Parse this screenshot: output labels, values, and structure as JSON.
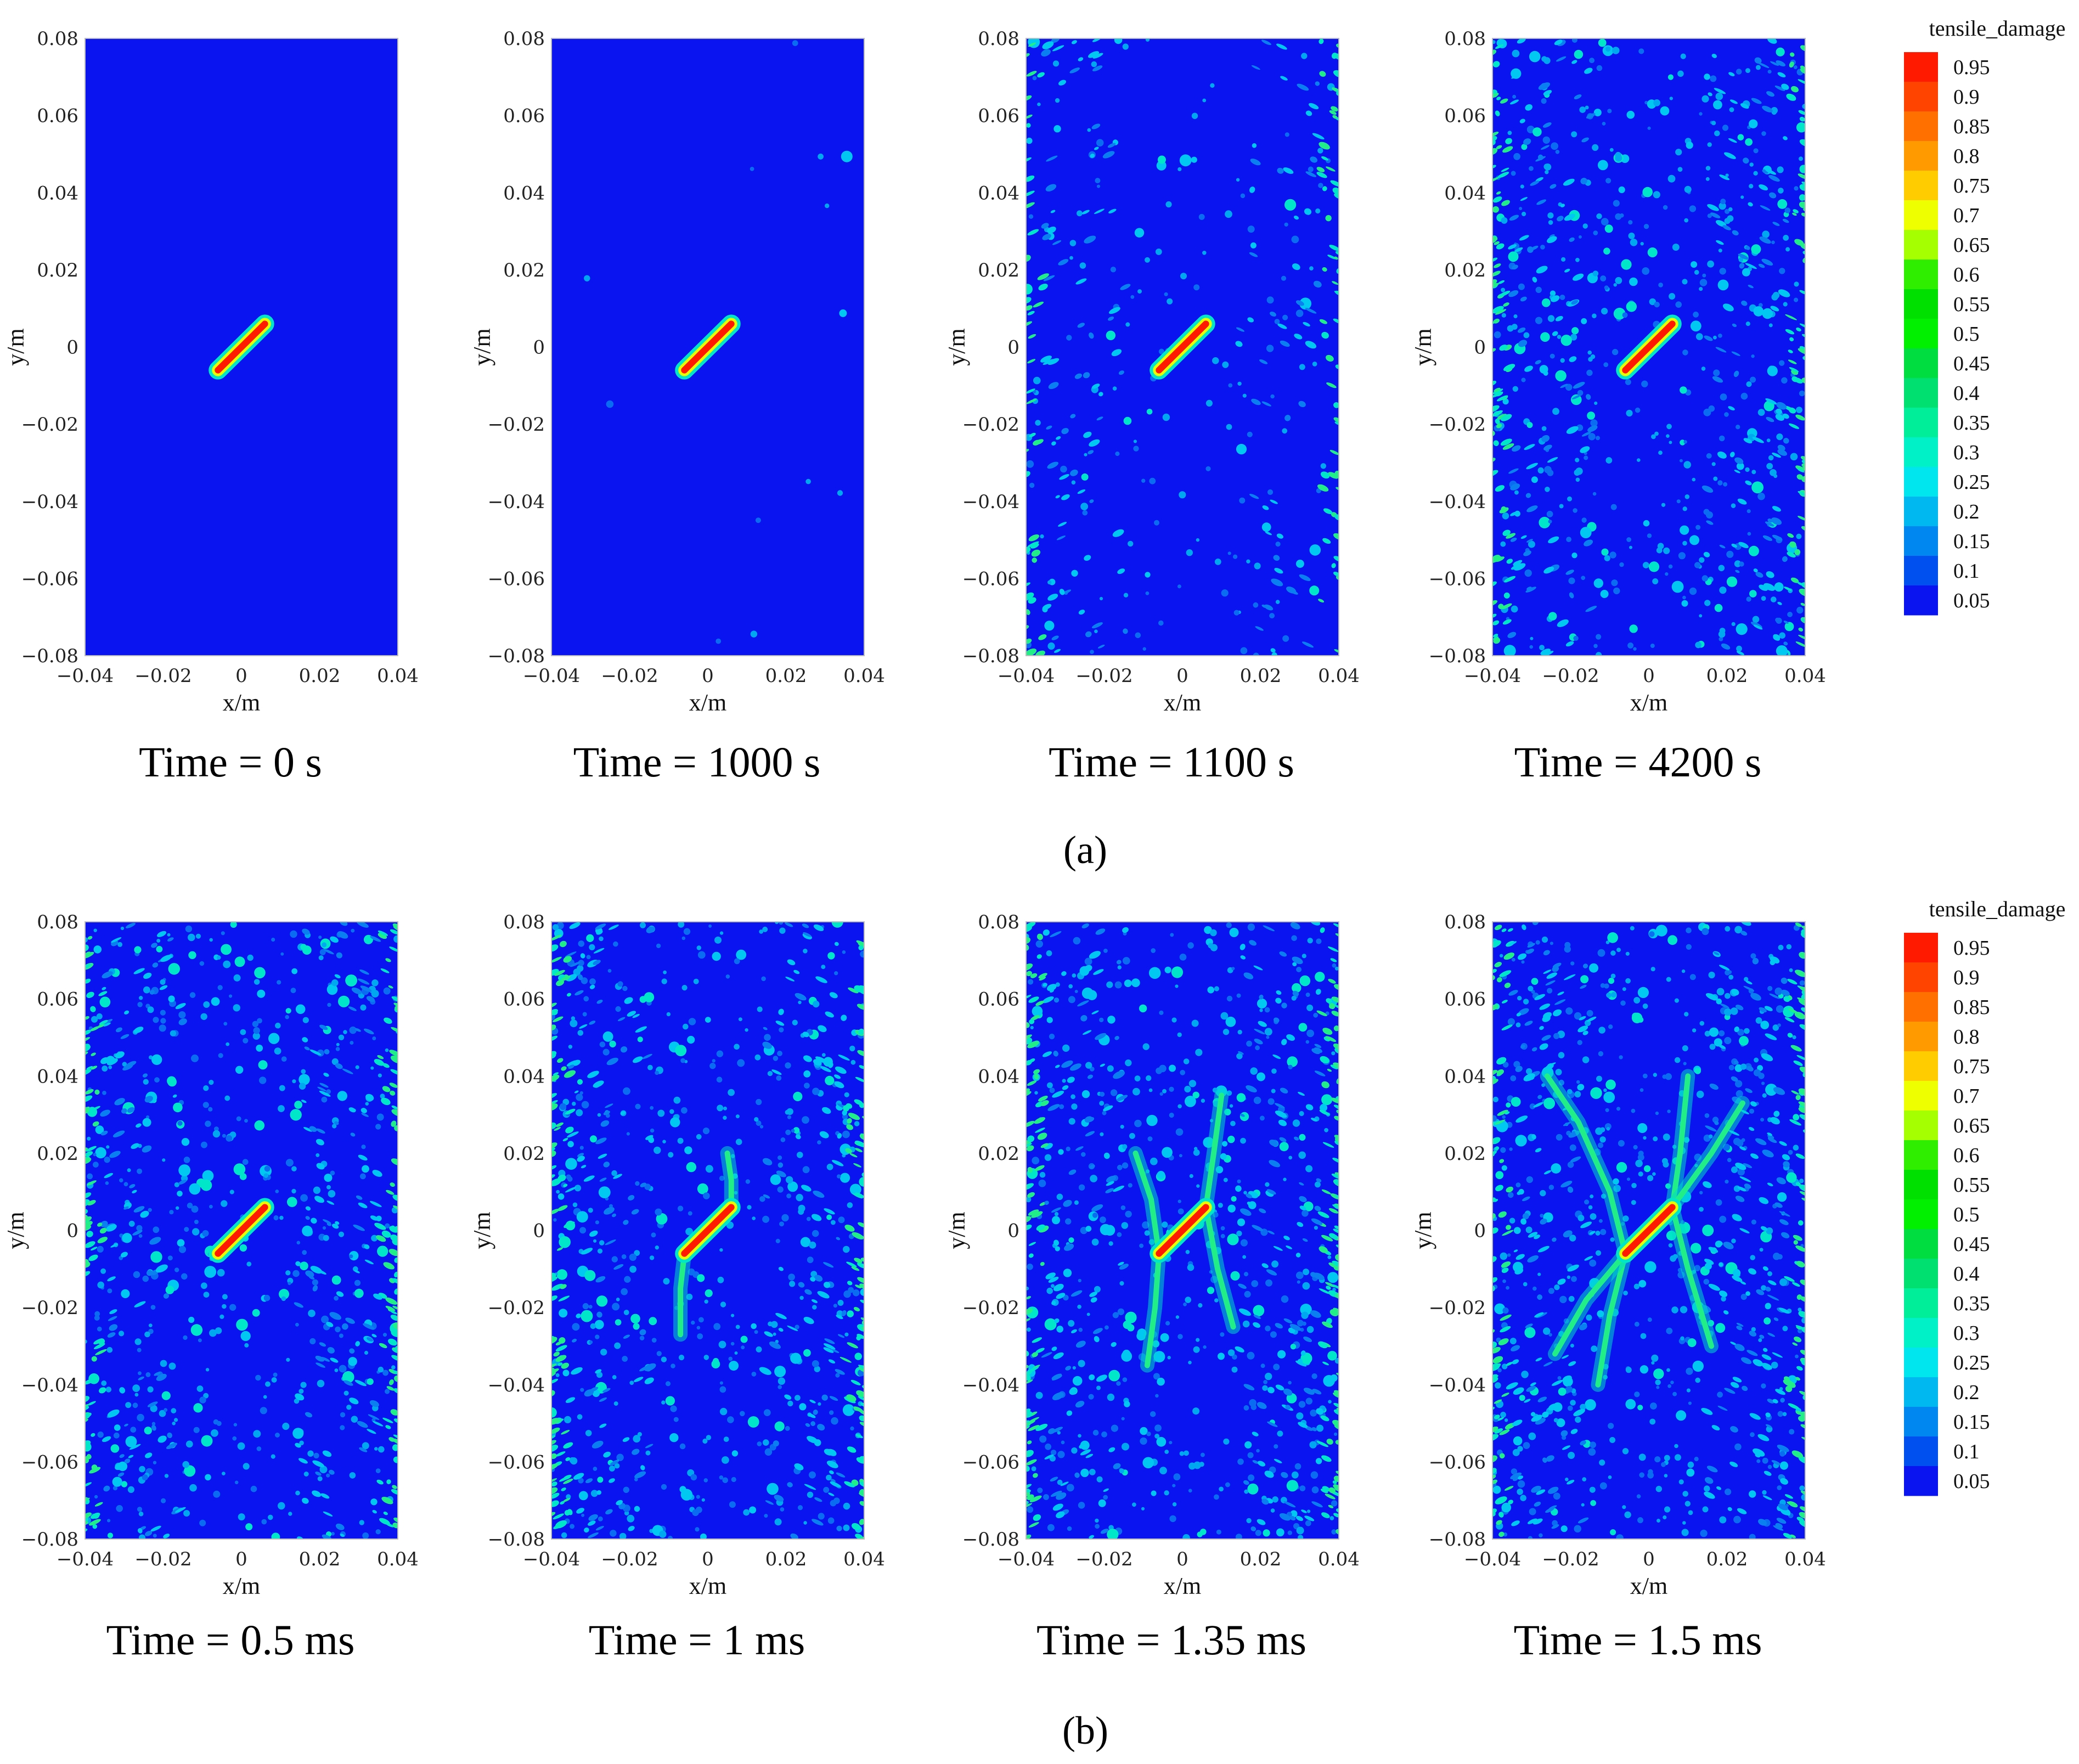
{
  "figure": {
    "panel_labels": [
      "(a)",
      "(b)"
    ]
  },
  "colors": {
    "background_blue": "#0a14f0",
    "crack_red": "#ff1a00",
    "crack_halo": "#00ff88",
    "frame": "#bdbdbd"
  },
  "chart_data": [
    {
      "type": "heatmap",
      "row": "a",
      "title": "Time = 0 s",
      "xlabel": "x/m",
      "ylabel": "y/m",
      "xlim": [
        -0.04,
        0.04
      ],
      "ylim": [
        -0.08,
        0.08
      ],
      "xticks": [
        "−0.04",
        "−0.02",
        "0",
        "0.02",
        "0.04"
      ],
      "yticks": [
        "0.08",
        "0.06",
        "0.04",
        "0.02",
        "0",
        "−0.02",
        "−0.04",
        "−0.06",
        "−0.08"
      ],
      "field": "tensile_damage",
      "crack": {
        "x1": -0.006,
        "y1": -0.006,
        "x2": 0.006,
        "y2": 0.006,
        "damage": 0.95
      },
      "scatter_density": 0.0,
      "edge_density": 0.0,
      "branches": []
    },
    {
      "type": "heatmap",
      "row": "a",
      "title": "Time = 1000 s",
      "xlabel": "x/m",
      "ylabel": "y/m",
      "xlim": [
        -0.04,
        0.04
      ],
      "ylim": [
        -0.08,
        0.08
      ],
      "xticks": [
        "−0.04",
        "−0.02",
        "0",
        "0.02",
        "0.04"
      ],
      "yticks": [
        "0.08",
        "0.06",
        "0.04",
        "0.02",
        "0",
        "−0.02",
        "−0.04",
        "−0.06",
        "−0.08"
      ],
      "field": "tensile_damage",
      "crack": {
        "x1": -0.006,
        "y1": -0.006,
        "x2": 0.006,
        "y2": 0.006,
        "damage": 0.95
      },
      "scatter_density": 0.02,
      "edge_density": 0.0,
      "branches": []
    },
    {
      "type": "heatmap",
      "row": "a",
      "title": "Time = 1100 s",
      "xlabel": "x/m",
      "ylabel": "y/m",
      "xlim": [
        -0.04,
        0.04
      ],
      "ylim": [
        -0.08,
        0.08
      ],
      "xticks": [
        "−0.04",
        "−0.02",
        "0",
        "0.02",
        "0.04"
      ],
      "yticks": [
        "0.08",
        "0.06",
        "0.04",
        "0.02",
        "0",
        "−0.02",
        "−0.04",
        "−0.06",
        "−0.08"
      ],
      "field": "tensile_damage",
      "crack": {
        "x1": -0.006,
        "y1": -0.006,
        "x2": 0.006,
        "y2": 0.006,
        "damage": 0.95
      },
      "scatter_density": 0.25,
      "edge_density": 0.9,
      "branches": []
    },
    {
      "type": "heatmap",
      "row": "a",
      "title": "Time = 4200 s",
      "xlabel": "x/m",
      "ylabel": "y/m",
      "xlim": [
        -0.04,
        0.04
      ],
      "ylim": [
        -0.08,
        0.08
      ],
      "xticks": [
        "−0.04",
        "−0.02",
        "0",
        "0.02",
        "0.04"
      ],
      "yticks": [
        "0.08",
        "0.06",
        "0.04",
        "0.02",
        "0",
        "−0.02",
        "−0.04",
        "−0.06",
        "−0.08"
      ],
      "field": "tensile_damage",
      "crack": {
        "x1": -0.006,
        "y1": -0.006,
        "x2": 0.006,
        "y2": 0.006,
        "damage": 0.95
      },
      "scatter_density": 0.75,
      "edge_density": 1.4,
      "branches": []
    },
    {
      "type": "heatmap",
      "row": "b",
      "title": "Time = 0.5 ms",
      "xlabel": "x/m",
      "ylabel": "y/m",
      "xlim": [
        -0.04,
        0.04
      ],
      "ylim": [
        -0.08,
        0.08
      ],
      "xticks": [
        "−0.04",
        "−0.02",
        "0",
        "0.02",
        "0.04"
      ],
      "yticks": [
        "0.08",
        "0.06",
        "0.04",
        "0.02",
        "0",
        "−0.02",
        "−0.04",
        "−0.06",
        "−0.08"
      ],
      "field": "tensile_damage",
      "crack": {
        "x1": -0.006,
        "y1": -0.006,
        "x2": 0.006,
        "y2": 0.006,
        "damage": 0.95
      },
      "scatter_density": 0.8,
      "edge_density": 1.5,
      "branches": []
    },
    {
      "type": "heatmap",
      "row": "b",
      "title": "Time = 1 ms",
      "xlabel": "x/m",
      "ylabel": "y/m",
      "xlim": [
        -0.04,
        0.04
      ],
      "ylim": [
        -0.08,
        0.08
      ],
      "xticks": [
        "−0.04",
        "−0.02",
        "0",
        "0.02",
        "0.04"
      ],
      "yticks": [
        "0.08",
        "0.06",
        "0.04",
        "0.02",
        "0",
        "−0.02",
        "−0.04",
        "−0.06",
        "−0.08"
      ],
      "field": "tensile_damage",
      "crack": {
        "x1": -0.006,
        "y1": -0.006,
        "x2": 0.006,
        "y2": 0.006,
        "damage": 0.95
      },
      "scatter_density": 0.8,
      "edge_density": 1.5,
      "branches": [
        [
          [
            -0.006,
            -0.006
          ],
          [
            -0.007,
            -0.015
          ],
          [
            -0.007,
            -0.027
          ]
        ],
        [
          [
            0.006,
            0.006
          ],
          [
            0.006,
            0.013
          ],
          [
            0.005,
            0.02
          ]
        ]
      ]
    },
    {
      "type": "heatmap",
      "row": "b",
      "title": "Time = 1.35 ms",
      "xlabel": "x/m",
      "ylabel": "y/m",
      "xlim": [
        -0.04,
        0.04
      ],
      "ylim": [
        -0.08,
        0.08
      ],
      "xticks": [
        "−0.04",
        "−0.02",
        "0",
        "0.02",
        "0.04"
      ],
      "yticks": [
        "0.08",
        "0.06",
        "0.04",
        "0.02",
        "0",
        "−0.02",
        "−0.04",
        "−0.06",
        "−0.08"
      ],
      "field": "tensile_damage",
      "crack": {
        "x1": -0.006,
        "y1": -0.006,
        "x2": 0.006,
        "y2": 0.006,
        "damage": 0.95
      },
      "scatter_density": 0.85,
      "edge_density": 1.6,
      "branches": [
        [
          [
            -0.006,
            -0.006
          ],
          [
            -0.007,
            -0.02
          ],
          [
            -0.009,
            -0.035
          ]
        ],
        [
          [
            -0.006,
            -0.006
          ],
          [
            -0.008,
            0.008
          ],
          [
            -0.012,
            0.02
          ]
        ],
        [
          [
            0.006,
            0.006
          ],
          [
            0.008,
            0.02
          ],
          [
            0.01,
            0.035
          ]
        ],
        [
          [
            0.006,
            0.006
          ],
          [
            0.009,
            -0.01
          ],
          [
            0.013,
            -0.025
          ]
        ]
      ]
    },
    {
      "type": "heatmap",
      "row": "b",
      "title": "Time = 1.5 ms",
      "xlabel": "x/m",
      "ylabel": "y/m",
      "xlim": [
        -0.04,
        0.04
      ],
      "ylim": [
        -0.08,
        0.08
      ],
      "xticks": [
        "−0.04",
        "−0.02",
        "0",
        "0.02",
        "0.04"
      ],
      "yticks": [
        "0.08",
        "0.06",
        "0.04",
        "0.02",
        "0",
        "−0.02",
        "−0.04",
        "−0.06",
        "−0.08"
      ],
      "field": "tensile_damage",
      "crack": {
        "x1": -0.006,
        "y1": -0.006,
        "x2": 0.006,
        "y2": 0.006,
        "damage": 0.95
      },
      "scatter_density": 0.9,
      "edge_density": 1.7,
      "branches": [
        [
          [
            -0.006,
            -0.006
          ],
          [
            -0.01,
            -0.022
          ],
          [
            -0.013,
            -0.04
          ]
        ],
        [
          [
            -0.006,
            -0.006
          ],
          [
            -0.01,
            0.01
          ],
          [
            -0.018,
            0.028
          ],
          [
            -0.026,
            0.04
          ]
        ],
        [
          [
            -0.006,
            -0.006
          ],
          [
            -0.016,
            -0.018
          ],
          [
            -0.024,
            -0.032
          ]
        ],
        [
          [
            0.006,
            0.006
          ],
          [
            0.008,
            0.02
          ],
          [
            0.01,
            0.04
          ]
        ],
        [
          [
            0.006,
            0.006
          ],
          [
            0.01,
            -0.01
          ],
          [
            0.016,
            -0.03
          ]
        ],
        [
          [
            0.006,
            0.006
          ],
          [
            0.016,
            0.02
          ],
          [
            0.024,
            0.033
          ]
        ]
      ]
    }
  ],
  "colorbar": {
    "title": "tensile_damage",
    "labels": [
      "0.95",
      "0.9",
      "0.85",
      "0.8",
      "0.75",
      "0.7",
      "0.65",
      "0.6",
      "0.55",
      "0.5",
      "0.45",
      "0.4",
      "0.35",
      "0.3",
      "0.25",
      "0.2",
      "0.15",
      "0.1",
      "0.05"
    ],
    "colors": [
      "#ff1a00",
      "#ff4400",
      "#ff7000",
      "#ff9a00",
      "#ffcc00",
      "#eeff00",
      "#a6ff00",
      "#30ee00",
      "#00e000",
      "#00f000",
      "#00dd40",
      "#00e070",
      "#00ee9a",
      "#00f0c8",
      "#00e6ee",
      "#00b8f0",
      "#0088f0",
      "#0050f0",
      "#0a14f0"
    ]
  }
}
